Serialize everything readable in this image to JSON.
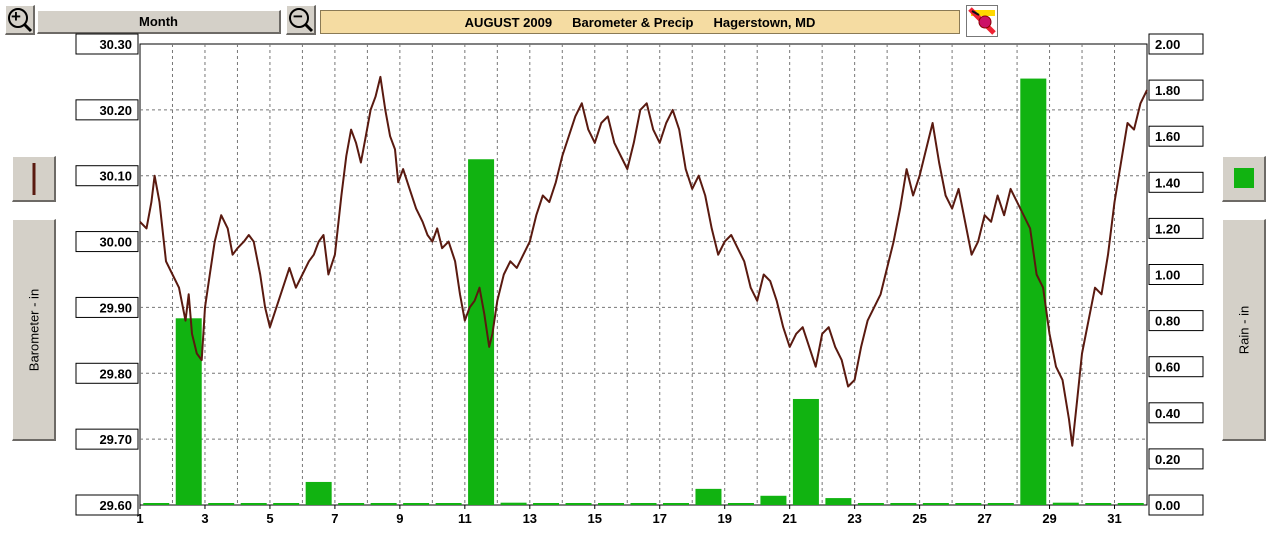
{
  "toolbar": {
    "zoom_in_label": "+",
    "zoom_out_label": "−",
    "mode_label": "Month",
    "title_month": "AUGUST  2009",
    "title_type": "Barometer & Precip",
    "title_place": "Hagerstown, MD"
  },
  "colors": {
    "barometer": "#5a1a10",
    "rain": "#11b311",
    "grid": "#777777",
    "title_bg": "#f5dca2",
    "button_bg": "#d4d0c8"
  },
  "left_axis_button": {
    "label": "Barometer - in"
  },
  "right_axis_button": {
    "label": "Rain - in"
  },
  "chart_data": {
    "type": "bar+line",
    "title": "AUGUST  2009     Barometer & Precip     Hagerstown, MD",
    "x": {
      "ticks": [
        "1",
        "3",
        "5",
        "7",
        "9",
        "11",
        "13",
        "15",
        "17",
        "19",
        "21",
        "23",
        "25",
        "27",
        "29",
        "31"
      ],
      "range": [
        1,
        32
      ]
    },
    "y_left": {
      "label": "Barometer - in",
      "range": [
        29.6,
        30.3
      ],
      "ticks": [
        "29.60",
        "29.70",
        "29.80",
        "29.90",
        "30.00",
        "30.10",
        "30.20",
        "30.30"
      ]
    },
    "y_right": {
      "label": "Rain - in",
      "range": [
        0,
        2.0
      ],
      "ticks": [
        "0.00",
        "0.20",
        "0.40",
        "0.60",
        "0.80",
        "1.00",
        "1.20",
        "1.40",
        "1.60",
        "1.80",
        "2.00"
      ]
    },
    "rain": {
      "name": "Rain - in",
      "days": [
        1,
        2,
        3,
        4,
        5,
        6,
        7,
        8,
        9,
        10,
        11,
        12,
        13,
        14,
        15,
        16,
        17,
        18,
        19,
        20,
        21,
        22,
        23,
        24,
        25,
        26,
        27,
        28,
        29,
        30,
        31
      ],
      "values": [
        0,
        0.81,
        0,
        0,
        0,
        0.1,
        0,
        0,
        0,
        0,
        1.5,
        0.01,
        0,
        0,
        0,
        0,
        0,
        0.07,
        0,
        0.04,
        0.46,
        0.03,
        0,
        0,
        0,
        0,
        0,
        1.85,
        0.01,
        0,
        0
      ]
    },
    "barometer": {
      "name": "Barometer - in",
      "points": [
        [
          1.0,
          30.03
        ],
        [
          1.2,
          30.02
        ],
        [
          1.35,
          30.06
        ],
        [
          1.45,
          30.1
        ],
        [
          1.6,
          30.06
        ],
        [
          1.8,
          29.97
        ],
        [
          2.0,
          29.95
        ],
        [
          2.2,
          29.93
        ],
        [
          2.4,
          29.88
        ],
        [
          2.5,
          29.92
        ],
        [
          2.6,
          29.86
        ],
        [
          2.75,
          29.83
        ],
        [
          2.9,
          29.82
        ],
        [
          3.0,
          29.9
        ],
        [
          3.15,
          29.95
        ],
        [
          3.3,
          30.0
        ],
        [
          3.5,
          30.04
        ],
        [
          3.7,
          30.02
        ],
        [
          3.85,
          29.98
        ],
        [
          4.0,
          29.99
        ],
        [
          4.2,
          30.0
        ],
        [
          4.35,
          30.01
        ],
        [
          4.5,
          30.0
        ],
        [
          4.7,
          29.95
        ],
        [
          4.85,
          29.9
        ],
        [
          5.0,
          29.87
        ],
        [
          5.2,
          29.9
        ],
        [
          5.4,
          29.93
        ],
        [
          5.6,
          29.96
        ],
        [
          5.8,
          29.93
        ],
        [
          6.0,
          29.95
        ],
        [
          6.2,
          29.97
        ],
        [
          6.35,
          29.98
        ],
        [
          6.5,
          30.0
        ],
        [
          6.65,
          30.01
        ],
        [
          6.8,
          29.95
        ],
        [
          7.0,
          29.98
        ],
        [
          7.2,
          30.07
        ],
        [
          7.35,
          30.13
        ],
        [
          7.5,
          30.17
        ],
        [
          7.65,
          30.15
        ],
        [
          7.8,
          30.12
        ],
        [
          7.95,
          30.16
        ],
        [
          8.1,
          30.2
        ],
        [
          8.25,
          30.22
        ],
        [
          8.4,
          30.25
        ],
        [
          8.55,
          30.2
        ],
        [
          8.7,
          30.16
        ],
        [
          8.85,
          30.14
        ],
        [
          8.95,
          30.09
        ],
        [
          9.1,
          30.11
        ],
        [
          9.3,
          30.08
        ],
        [
          9.5,
          30.05
        ],
        [
          9.7,
          30.03
        ],
        [
          9.85,
          30.01
        ],
        [
          10.0,
          30.0
        ],
        [
          10.15,
          30.02
        ],
        [
          10.3,
          29.99
        ],
        [
          10.5,
          30.0
        ],
        [
          10.7,
          29.97
        ],
        [
          10.85,
          29.92
        ],
        [
          11.0,
          29.88
        ],
        [
          11.15,
          29.9
        ],
        [
          11.3,
          29.91
        ],
        [
          11.45,
          29.93
        ],
        [
          11.6,
          29.89
        ],
        [
          11.75,
          29.84
        ],
        [
          11.85,
          29.86
        ],
        [
          12.0,
          29.91
        ],
        [
          12.2,
          29.95
        ],
        [
          12.4,
          29.97
        ],
        [
          12.6,
          29.96
        ],
        [
          12.8,
          29.98
        ],
        [
          13.0,
          30.0
        ],
        [
          13.2,
          30.04
        ],
        [
          13.4,
          30.07
        ],
        [
          13.6,
          30.06
        ],
        [
          13.8,
          30.09
        ],
        [
          14.0,
          30.13
        ],
        [
          14.2,
          30.16
        ],
        [
          14.4,
          30.19
        ],
        [
          14.6,
          30.21
        ],
        [
          14.8,
          30.17
        ],
        [
          15.0,
          30.15
        ],
        [
          15.2,
          30.18
        ],
        [
          15.4,
          30.19
        ],
        [
          15.6,
          30.15
        ],
        [
          15.8,
          30.13
        ],
        [
          16.0,
          30.11
        ],
        [
          16.2,
          30.15
        ],
        [
          16.4,
          30.2
        ],
        [
          16.6,
          30.21
        ],
        [
          16.8,
          30.17
        ],
        [
          17.0,
          30.15
        ],
        [
          17.2,
          30.18
        ],
        [
          17.4,
          30.2
        ],
        [
          17.6,
          30.17
        ],
        [
          17.8,
          30.11
        ],
        [
          18.0,
          30.08
        ],
        [
          18.2,
          30.1
        ],
        [
          18.4,
          30.07
        ],
        [
          18.6,
          30.02
        ],
        [
          18.8,
          29.98
        ],
        [
          19.0,
          30.0
        ],
        [
          19.2,
          30.01
        ],
        [
          19.4,
          29.99
        ],
        [
          19.6,
          29.97
        ],
        [
          19.8,
          29.93
        ],
        [
          20.0,
          29.91
        ],
        [
          20.2,
          29.95
        ],
        [
          20.4,
          29.94
        ],
        [
          20.6,
          29.91
        ],
        [
          20.8,
          29.87
        ],
        [
          21.0,
          29.84
        ],
        [
          21.2,
          29.86
        ],
        [
          21.4,
          29.87
        ],
        [
          21.6,
          29.84
        ],
        [
          21.8,
          29.81
        ],
        [
          22.0,
          29.86
        ],
        [
          22.2,
          29.87
        ],
        [
          22.4,
          29.84
        ],
        [
          22.6,
          29.82
        ],
        [
          22.8,
          29.78
        ],
        [
          23.0,
          29.79
        ],
        [
          23.2,
          29.84
        ],
        [
          23.4,
          29.88
        ],
        [
          23.6,
          29.9
        ],
        [
          23.8,
          29.92
        ],
        [
          24.0,
          29.96
        ],
        [
          24.2,
          30.0
        ],
        [
          24.4,
          30.05
        ],
        [
          24.6,
          30.11
        ],
        [
          24.8,
          30.07
        ],
        [
          25.0,
          30.1
        ],
        [
          25.2,
          30.14
        ],
        [
          25.4,
          30.18
        ],
        [
          25.6,
          30.12
        ],
        [
          25.8,
          30.07
        ],
        [
          26.0,
          30.05
        ],
        [
          26.2,
          30.08
        ],
        [
          26.4,
          30.03
        ],
        [
          26.6,
          29.98
        ],
        [
          26.8,
          30.0
        ],
        [
          27.0,
          30.04
        ],
        [
          27.2,
          30.03
        ],
        [
          27.4,
          30.07
        ],
        [
          27.6,
          30.04
        ],
        [
          27.8,
          30.08
        ],
        [
          28.0,
          30.06
        ],
        [
          28.2,
          30.04
        ],
        [
          28.4,
          30.02
        ],
        [
          28.6,
          29.95
        ],
        [
          28.8,
          29.93
        ],
        [
          29.0,
          29.86
        ],
        [
          29.2,
          29.81
        ],
        [
          29.4,
          29.79
        ],
        [
          29.6,
          29.73
        ],
        [
          29.7,
          29.69
        ],
        [
          29.85,
          29.76
        ],
        [
          30.0,
          29.83
        ],
        [
          30.2,
          29.88
        ],
        [
          30.4,
          29.93
        ],
        [
          30.6,
          29.92
        ],
        [
          30.8,
          29.98
        ],
        [
          31.0,
          30.06
        ],
        [
          31.2,
          30.12
        ],
        [
          31.4,
          30.18
        ],
        [
          31.6,
          30.17
        ],
        [
          31.8,
          30.21
        ],
        [
          32.0,
          30.23
        ]
      ]
    }
  }
}
